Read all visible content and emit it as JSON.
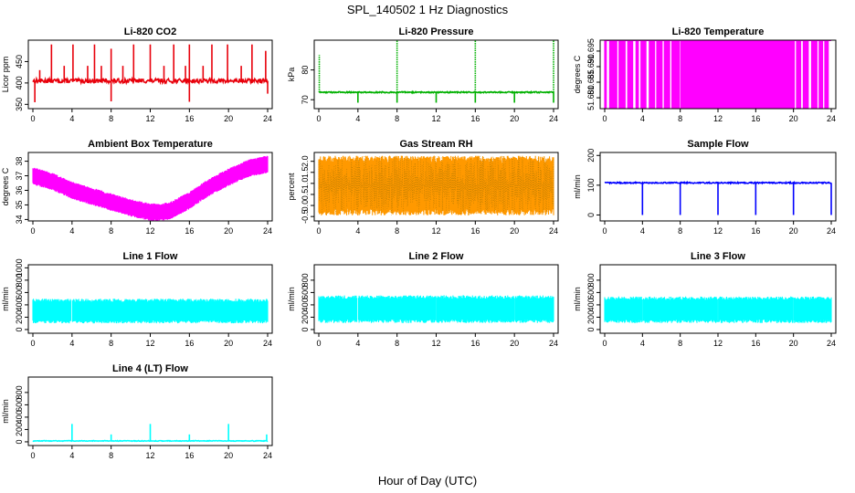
{
  "title": "SPL_140502  1 Hz Diagnostics",
  "xlabel": "Hour of Day (UTC)",
  "chart_data": [
    {
      "id": "co2",
      "type": "line",
      "title": "Li-820 CO2",
      "ylabel": "Licor ppm",
      "color": "#e8000b",
      "xlim": [
        0,
        24
      ],
      "ylim": [
        340,
        500
      ],
      "xticks": [
        0,
        4,
        8,
        12,
        16,
        20,
        24
      ],
      "yticks": [
        350,
        400,
        450
      ],
      "series": [
        {
          "name": "",
          "style": "noisy-spikes",
          "base": 405,
          "noise": 5,
          "spikes_up": [
            [
              0.7,
              430
            ],
            [
              1.9,
              490
            ],
            [
              3.2,
              440
            ],
            [
              4.1,
              490
            ],
            [
              5.6,
              440
            ],
            [
              6.3,
              490
            ],
            [
              7.0,
              440
            ],
            [
              8.0,
              480
            ],
            [
              9.2,
              440
            ],
            [
              10.3,
              490
            ],
            [
              12.0,
              490
            ],
            [
              13.4,
              440
            ],
            [
              14.4,
              490
            ],
            [
              15.6,
              440
            ],
            [
              16.0,
              490
            ],
            [
              17.4,
              440
            ],
            [
              18.3,
              490
            ],
            [
              19.9,
              490
            ],
            [
              21.3,
              440
            ],
            [
              22.4,
              490
            ],
            [
              23.8,
              475
            ]
          ],
          "spikes_down": [
            [
              0.2,
              355
            ],
            [
              8.0,
              357
            ],
            [
              16.0,
              356
            ],
            [
              24.0,
              375
            ]
          ]
        }
      ]
    },
    {
      "id": "pressure",
      "type": "line",
      "title": "Li-820 Pressure",
      "ylabel": "kPa",
      "color": "#00b000",
      "xlim": [
        0,
        24
      ],
      "ylim": [
        67,
        90
      ],
      "xticks": [
        0,
        4,
        8,
        12,
        16,
        20,
        24
      ],
      "yticks": [
        70,
        80
      ],
      "series": [
        {
          "name": "",
          "style": "noisy-spikes",
          "base": 72.5,
          "noise": 0.2,
          "spikes_up": [
            [
              0.05,
              85
            ],
            [
              8.0,
              90
            ],
            [
              16.0,
              90
            ],
            [
              24.0,
              90
            ]
          ],
          "spikes_down": [
            [
              4.0,
              69
            ],
            [
              8.0,
              69
            ],
            [
              12.0,
              69
            ],
            [
              16.0,
              69
            ],
            [
              20.0,
              69
            ],
            [
              24.0,
              69
            ]
          ]
        }
      ]
    },
    {
      "id": "licor-temp",
      "type": "line",
      "title": "Li-820 Temperature",
      "ylabel": "degrees C",
      "color": "#ff00ff",
      "xlim": [
        0,
        24
      ],
      "ylim": [
        51.6765,
        51.6985
      ],
      "xticks": [
        0,
        4,
        8,
        12,
        16,
        20,
        24
      ],
      "yticks": [
        51.68,
        51.685,
        51.69,
        51.695
      ],
      "series": [
        {
          "name": "",
          "style": "quantized",
          "high": 51.6985,
          "low": 51.6765,
          "gaps": [
            [
              0.2,
              0.5
            ],
            [
              1.3,
              1.5
            ],
            [
              2.2,
              2.4
            ],
            [
              3.0,
              3.3
            ],
            [
              3.6,
              3.8
            ],
            [
              4.4,
              4.7
            ],
            [
              5.3,
              5.5
            ],
            [
              6.1,
              6.3
            ],
            [
              6.9,
              7.1
            ],
            [
              7.9,
              8.0
            ],
            [
              20.1,
              20.3
            ],
            [
              20.8,
              21.0
            ],
            [
              21.6,
              21.9
            ],
            [
              22.5,
              22.7
            ],
            [
              23.1,
              23.3
            ],
            [
              23.7,
              24.0
            ]
          ]
        }
      ]
    },
    {
      "id": "ambient-temp",
      "type": "line",
      "title": "Ambient Box Temperature",
      "ylabel": "degrees C",
      "color": "#ff00ff",
      "xlim": [
        0,
        24
      ],
      "ylim": [
        33.9,
        38.6
      ],
      "xticks": [
        0,
        4,
        8,
        12,
        16,
        20,
        24
      ],
      "yticks": [
        34,
        35,
        36,
        37,
        38
      ],
      "series": [
        {
          "name": "",
          "style": "band",
          "center": [
            [
              0,
              37.0
            ],
            [
              2,
              36.6
            ],
            [
              4,
              36.0
            ],
            [
              6,
              35.6
            ],
            [
              8,
              35.2
            ],
            [
              10,
              34.8
            ],
            [
              12,
              34.5
            ],
            [
              13,
              34.5
            ],
            [
              14,
              34.6
            ],
            [
              16,
              35.3
            ],
            [
              18,
              36.2
            ],
            [
              20,
              36.9
            ],
            [
              22,
              37.5
            ],
            [
              24,
              37.8
            ]
          ],
          "amplitude": 0.6
        }
      ]
    },
    {
      "id": "gas-rh",
      "type": "line",
      "title": "Gas Stream RH",
      "ylabel": "percent",
      "color": "#ff9900",
      "xlim": [
        0,
        24
      ],
      "ylim": [
        -0.7,
        2.4
      ],
      "xticks": [
        0,
        4,
        8,
        12,
        16,
        20,
        24
      ],
      "yticks": [
        -0.5,
        0.0,
        0.5,
        1.0,
        1.5,
        2.0
      ],
      "series": [
        {
          "name": "",
          "style": "band",
          "center": [
            [
              0,
              0.9
            ],
            [
              24,
              0.9
            ]
          ],
          "amplitude": 1.35
        }
      ]
    },
    {
      "id": "sample-flow",
      "type": "line",
      "title": "Sample Flow",
      "ylabel": "ml/min",
      "color": "#0000ff",
      "xlim": [
        0,
        24
      ],
      "ylim": [
        -20,
        210
      ],
      "xticks": [
        0,
        4,
        8,
        12,
        16,
        20,
        24
      ],
      "yticks": [
        0,
        100,
        200
      ],
      "series": [
        {
          "name": "",
          "style": "noisy-spikes",
          "base": 108,
          "noise": 2,
          "spikes_up": [],
          "spikes_down": [
            [
              4.0,
              0
            ],
            [
              8.0,
              0
            ],
            [
              12.0,
              0
            ],
            [
              16.0,
              0
            ],
            [
              20.0,
              0
            ],
            [
              24.0,
              0
            ]
          ]
        }
      ]
    },
    {
      "id": "line1",
      "type": "line",
      "title": "Line 1 Flow",
      "ylabel": "ml/min",
      "color": "#00ffff",
      "xlim": [
        0,
        24
      ],
      "ylim": [
        -60,
        1050
      ],
      "xticks": [
        0,
        4,
        8,
        12,
        16,
        20,
        24
      ],
      "yticks": [
        0,
        200,
        400,
        600,
        800,
        1000
      ],
      "series": [
        {
          "name": "",
          "style": "band",
          "center": [
            [
              0,
              300
            ],
            [
              24,
              300
            ]
          ],
          "amplitude": 200,
          "gaps": [
            [
              3.9,
              4.05
            ]
          ]
        }
      ]
    },
    {
      "id": "line2",
      "type": "line",
      "title": "Line 2 Flow",
      "ylabel": "ml/min",
      "color": "#00ffff",
      "xlim": [
        0,
        24
      ],
      "ylim": [
        -60,
        1050
      ],
      "xticks": [
        0,
        4,
        8,
        12,
        16,
        20,
        24
      ],
      "yticks": [
        0,
        200,
        400,
        600,
        800
      ],
      "series": [
        {
          "name": "",
          "style": "band",
          "center": [
            [
              0,
              330
            ],
            [
              24,
              330
            ]
          ],
          "amplitude": 225,
          "gaps": [
            [
              3.9,
              4.05
            ],
            [
              11.95,
              12.05
            ],
            [
              19.95,
              20.05
            ]
          ]
        }
      ]
    },
    {
      "id": "line3",
      "type": "line",
      "title": "Line 3 Flow",
      "ylabel": "ml/min",
      "color": "#00ffff",
      "xlim": [
        0,
        24
      ],
      "ylim": [
        -60,
        1050
      ],
      "xticks": [
        0,
        4,
        8,
        12,
        16,
        20,
        24
      ],
      "yticks": [
        0,
        200,
        400,
        600,
        800
      ],
      "series": [
        {
          "name": "",
          "style": "band",
          "center": [
            [
              0,
              320
            ],
            [
              24,
              320
            ]
          ],
          "amplitude": 215,
          "gaps": [
            [
              3.95,
              4.05
            ],
            [
              11.95,
              12.05
            ],
            [
              19.95,
              20.05
            ]
          ]
        }
      ]
    },
    {
      "id": "line4",
      "type": "line",
      "title": "Line 4 (LT) Flow",
      "ylabel": "ml/min",
      "color": "#00ffff",
      "xlim": [
        0,
        24
      ],
      "ylim": [
        -60,
        1050
      ],
      "xticks": [
        0,
        4,
        8,
        12,
        16,
        20,
        24
      ],
      "yticks": [
        0,
        200,
        400,
        600,
        800
      ],
      "series": [
        {
          "name": "",
          "style": "noisy-spikes",
          "base": 15,
          "noise": 5,
          "spikes_up": [
            [
              4.0,
              290
            ],
            [
              8.0,
              120
            ],
            [
              12.0,
              290
            ],
            [
              16.0,
              120
            ],
            [
              20.0,
              290
            ],
            [
              23.9,
              120
            ]
          ],
          "spikes_down": []
        }
      ]
    }
  ]
}
